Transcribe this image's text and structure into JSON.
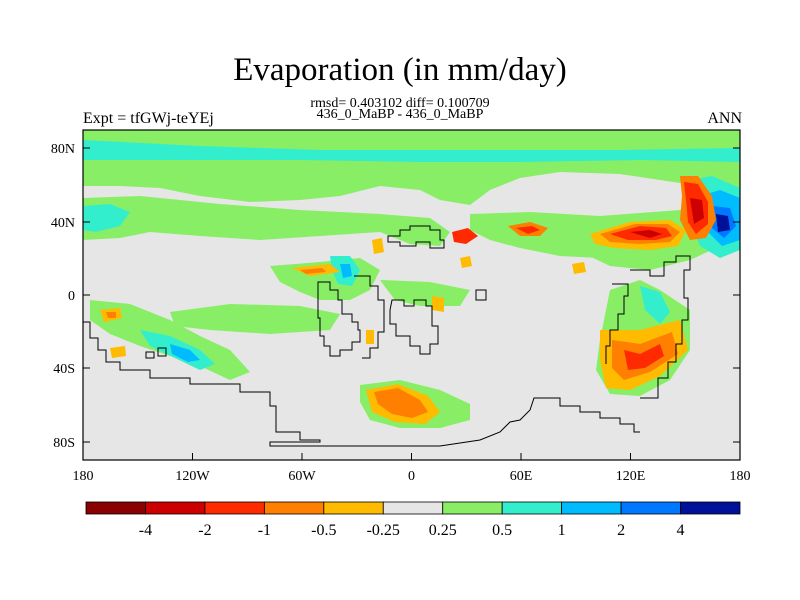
{
  "title": "Evaporation (in mm/day)",
  "stats_line": "rmsd= 0.403102 diff= 0.100709",
  "case_line": "436_0_MaBP - 436_0_MaBP",
  "left_string": "Expt = tfGWj-teYEj",
  "right_string": "ANN",
  "lat_ticks": [
    "80N",
    "40N",
    "0",
    "40S",
    "80S"
  ],
  "lon_ticks": [
    "180",
    "120W",
    "60W",
    "0",
    "60E",
    "120E",
    "180"
  ],
  "colorbar": {
    "colors": [
      "#8b0000",
      "#cc0000",
      "#ff2a00",
      "#ff7f00",
      "#ffbb00",
      "#e6e6e6",
      "#88ee66",
      "#33eecc",
      "#00bbff",
      "#0077ff",
      "#001199"
    ],
    "labels": [
      "-4",
      "-2",
      "-1",
      "-0.5",
      "-0.25",
      "0.25",
      "0.5",
      "1",
      "2",
      "4"
    ]
  },
  "map_colors": {
    "background": "#e6e6e6",
    "light_green": "#88ee66",
    "cyan": "#33eecc",
    "light_blue": "#00bbff",
    "blue": "#0077ff",
    "navy": "#001199",
    "yellow_orange": "#ffbb00",
    "orange": "#ff7f00",
    "red": "#ff2a00",
    "dark_red": "#cc0000"
  }
}
